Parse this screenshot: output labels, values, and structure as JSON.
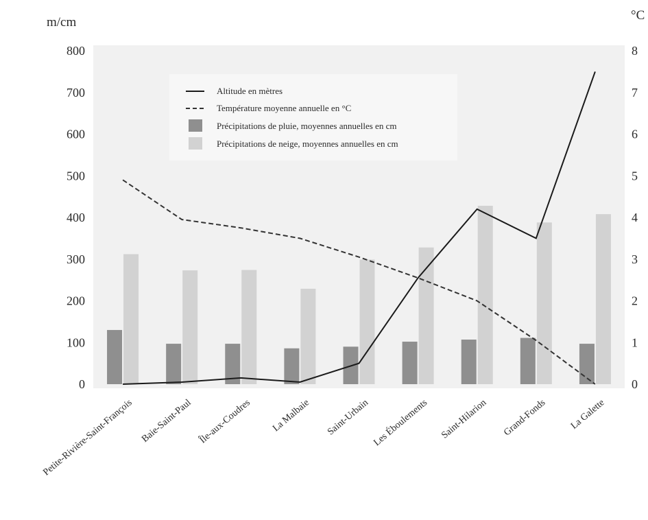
{
  "chart_data": {
    "type": "bar",
    "left_axis_label": "m/cm",
    "right_axis_label": "°C",
    "left_ylim": [
      0,
      800
    ],
    "right_ylim": [
      0,
      8
    ],
    "left_ticks": [
      "0",
      "100",
      "200",
      "300",
      "400",
      "500",
      "600",
      "700",
      "800"
    ],
    "right_ticks": [
      "0",
      "1",
      "2",
      "3",
      "4",
      "5",
      "6",
      "7",
      "8"
    ],
    "categories": [
      "Petite-Rivière-Saint-François",
      "Baie-Saint-Paul",
      "Île-aux-Coudres",
      "La Malbaie",
      "Saint-Urbain",
      "Les Éboulements",
      "Saint-Hilarion",
      "Grand-Fonds",
      "La Galette"
    ],
    "grid": false,
    "legend_position": "top-center",
    "series": [
      {
        "name": "Altitude en mètres",
        "kind": "line",
        "axis": "left",
        "style": "solid",
        "color": "#1a1a1a",
        "values": [
          0,
          5,
          15,
          5,
          50,
          255,
          420,
          350,
          750
        ]
      },
      {
        "name": "Température moyenne annuelle en °C",
        "kind": "line",
        "axis": "right",
        "style": "dashed",
        "color": "#333333",
        "values": [
          4.9,
          3.95,
          3.75,
          3.5,
          3.05,
          2.55,
          2.0,
          1.05,
          0.0
        ]
      },
      {
        "name": "Précipitations de pluie,  moyennes annuelles en cm",
        "kind": "bar",
        "axis": "left",
        "color": "#8f8f8f",
        "values": [
          130,
          97,
          97,
          86,
          90,
          102,
          107,
          111,
          97
        ]
      },
      {
        "name": "Précipitations de neige,  moyennes annuelles en cm",
        "kind": "bar",
        "axis": "left",
        "color": "#d2d2d2",
        "values": [
          312,
          273,
          274,
          229,
          299,
          328,
          428,
          388,
          408
        ]
      }
    ]
  }
}
